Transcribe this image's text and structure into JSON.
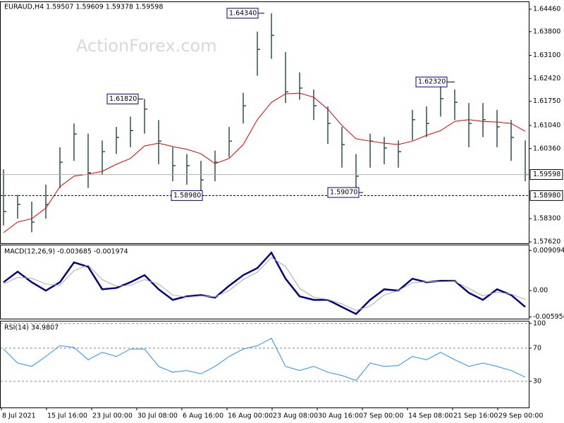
{
  "chart_data": [
    {
      "type": "ohlc",
      "title": "EURAUD,H4  1.59507 1.59609 1.59378 1.59598",
      "watermark": "ActionForex.com",
      "color": "#2f4f4f",
      "high": [
        1.5975,
        1.59,
        1.588,
        1.593,
        1.604,
        1.611,
        1.608,
        1.606,
        1.61,
        1.613,
        1.6182,
        1.612,
        1.604,
        1.602,
        1.6,
        1.603,
        1.61,
        1.62,
        1.638,
        1.6434,
        1.632,
        1.626,
        1.621,
        1.616,
        1.61,
        1.602,
        1.608,
        1.607,
        1.606,
        1.615,
        1.616,
        1.6232,
        1.621,
        1.617,
        1.617,
        1.615,
        1.612,
        1.606
      ],
      "low": [
        1.581,
        1.583,
        1.579,
        1.583,
        1.592,
        1.6,
        1.592,
        1.596,
        1.602,
        1.604,
        1.608,
        1.599,
        1.594,
        1.593,
        1.5898,
        1.594,
        1.601,
        1.611,
        1.625,
        1.63,
        1.617,
        1.618,
        1.612,
        1.605,
        1.598,
        1.5907,
        1.598,
        1.599,
        1.598,
        1.606,
        1.607,
        1.613,
        1.612,
        1.604,
        1.607,
        1.604,
        1.6,
        1.594
      ],
      "close": [
        1.5851,
        1.5872,
        1.582,
        1.5872,
        1.5996,
        1.6079,
        1.5965,
        1.6027,
        1.6069,
        1.6089,
        1.6152,
        1.6058,
        1.5986,
        1.5986,
        1.5944,
        1.5996,
        1.6058,
        1.6162,
        1.6328,
        1.6369,
        1.6203,
        1.6214,
        1.6162,
        1.611,
        1.6048,
        1.5955,
        1.6058,
        1.6038,
        1.6027,
        1.6121,
        1.611,
        1.6183,
        1.6172,
        1.611,
        1.6121,
        1.61,
        1.6069,
        1.59598
      ],
      "ma": {
        "color": "#e00000",
        "values": [
          1.5789,
          1.582,
          1.583,
          1.5861,
          1.5924,
          1.5955,
          1.5961,
          1.5969,
          1.599,
          1.6007,
          1.6044,
          1.6052,
          1.6042,
          1.6034,
          1.6021,
          1.5992,
          1.6007,
          1.6048,
          1.6121,
          1.6172,
          1.6197,
          1.6199,
          1.6187,
          1.6152,
          1.6104,
          1.6065,
          1.6058,
          1.6052,
          1.6048,
          1.6058,
          1.6075,
          1.6089,
          1.6116,
          1.6121,
          1.6116,
          1.6114,
          1.611,
          1.6087
        ]
      },
      "ylim": [
        1.5762,
        1.6446
      ],
      "yticks": [
        {
          "value": 1.6446,
          "label": "1.64460"
        },
        {
          "value": 1.638,
          "label": "1.63800"
        },
        {
          "value": 1.631,
          "label": "1.63100"
        },
        {
          "value": 1.6242,
          "label": "1.62420"
        },
        {
          "value": 1.6175,
          "label": "1.61750"
        },
        {
          "value": 1.6104,
          "label": "1.61040"
        },
        {
          "value": 1.6036,
          "label": "1.60360"
        },
        {
          "value": 1.583,
          "label": "1.58300"
        },
        {
          "value": 1.5762,
          "label": "1.57620"
        }
      ],
      "price_line": {
        "value": 1.59598,
        "label": "1.59598"
      },
      "level_line": {
        "value": 1.5898,
        "label": "1.58980"
      },
      "annotations": [
        {
          "value": 1.6434,
          "label": "1.64340"
        },
        {
          "value": 1.6182,
          "label": "1.61820"
        },
        {
          "value": 1.6232,
          "label": "1.62320"
        },
        {
          "value": 1.5898,
          "label": "1.58980"
        },
        {
          "value": 1.5907,
          "label": "1.59070"
        }
      ],
      "xtick_labels": [
        "8 Jul 2021",
        "15 Jul 16:00",
        "23 Jul 00:00",
        "30 Jul 08:00",
        "6 Aug 16:00",
        "16 Aug 00:00",
        "23 Aug 08:00",
        "30 Aug 16:00",
        "7 Sep 00:00",
        "14 Sep 08:00",
        "21 Sep 16:00",
        "29 Sep 00:00"
      ]
    },
    {
      "type": "line",
      "title": "MACD(12,26,9) -0.003685 -0.001974",
      "series": [
        {
          "color": "#00008b",
          "values": [
            0.0019,
            0.0043,
            0.0019,
            0,
            0.0019,
            0.0064,
            0.0054,
            0.0003,
            0.0006,
            0.0019,
            0.0035,
            0.0003,
            -0.0021,
            -0.0013,
            -0.001,
            -0.0016,
            0.0011,
            0.0035,
            0.0051,
            0.0086,
            0.0027,
            -0.0013,
            -0.0021,
            -0.0021,
            -0.0037,
            -0.0053,
            -0.0021,
            0.0003,
            0,
            0.0027,
            0.0019,
            0.0022,
            0.0022,
            -0.0005,
            -0.0021,
            0.0003,
            -0.001,
            -0.0037
          ]
        },
        {
          "color": "#a9a9a9",
          "values": [
            0.0015,
            0.003,
            0.0028,
            0.0015,
            0.0012,
            0.0045,
            0.0058,
            0.0025,
            0.001,
            0.0012,
            0.0025,
            0.0015,
            -0.001,
            -0.0015,
            -0.0012,
            -0.0014,
            0,
            0.0025,
            0.0042,
            0.0075,
            0.0055,
            0.0005,
            -0.0015,
            -0.002,
            -0.003,
            -0.0045,
            -0.0035,
            -0.001,
            0,
            0.0018,
            0.002,
            0.002,
            0.0021,
            0.0005,
            -0.0012,
            -0.0003,
            -0.0008,
            -0.002
          ]
        }
      ],
      "ylim": [
        -0.0062,
        0.0101
      ],
      "yticks": [
        0.009094,
        {
          "value": 0,
          "label": "0.00"
        },
        -0.005956
      ],
      "grid": false
    },
    {
      "type": "line",
      "title": "RSI(14) 34.9807",
      "series": [
        {
          "color": "#1e90ff",
          "values": [
            69,
            52,
            48,
            60,
            73,
            71,
            56,
            65,
            60,
            69,
            69,
            48,
            41,
            43,
            39,
            48,
            60,
            69,
            73,
            82,
            48,
            43,
            48,
            41,
            37,
            31,
            52,
            48,
            49,
            60,
            56,
            65,
            56,
            48,
            52,
            48,
            43,
            35
          ]
        }
      ],
      "ylim": [
        0,
        100
      ],
      "yticks": [
        100,
        70,
        30
      ],
      "grid": true
    }
  ]
}
